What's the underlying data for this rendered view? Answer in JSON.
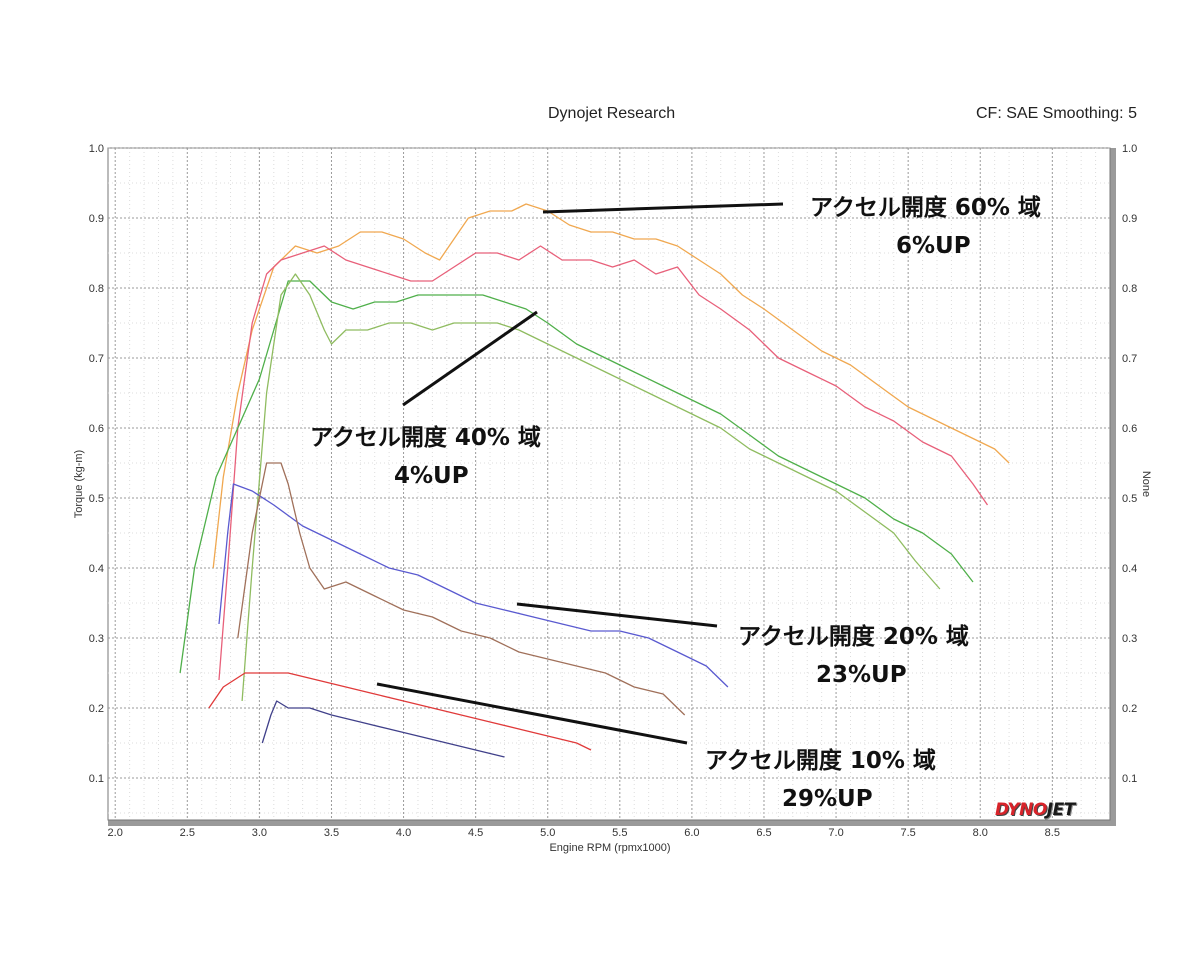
{
  "header": {
    "title": "Dynojet Research",
    "settings": "CF: SAE Smoothing: 5"
  },
  "logo": {
    "part1": "DYNO",
    "part2": "JET"
  },
  "annotations": [
    {
      "label": "アクセル開度 60% 域",
      "gain": "6%UP"
    },
    {
      "label": "アクセル開度 40% 域",
      "gain": "4%UP"
    },
    {
      "label": "アクセル開度 20% 域",
      "gain": "23%UP"
    },
    {
      "label": "アクセル開度 10% 域",
      "gain": "29%UP"
    }
  ],
  "chart_data": {
    "type": "line",
    "xlabel": "Engine RPM (rpmx1000)",
    "ylabel": "Torque (kg-m)",
    "y2label": "None",
    "xlim": [
      1.95,
      8.9
    ],
    "ylim": [
      0.04,
      1.0
    ],
    "xticks": [
      "2.0",
      "2.5",
      "3.0",
      "3.5",
      "4.0",
      "4.5",
      "5.0",
      "5.5",
      "6.0",
      "6.5",
      "7.0",
      "7.5",
      "8.0",
      "8.5"
    ],
    "yticks": [
      "0.1",
      "0.2",
      "0.3",
      "0.4",
      "0.5",
      "0.6",
      "0.7",
      "0.8",
      "0.9",
      "1.0"
    ],
    "grid": true,
    "series": [
      {
        "color": "#f0a850",
        "points": [
          [
            2.68,
            0.4
          ],
          [
            2.75,
            0.53
          ],
          [
            2.85,
            0.65
          ],
          [
            2.95,
            0.74
          ],
          [
            3.1,
            0.83
          ],
          [
            3.25,
            0.86
          ],
          [
            3.4,
            0.85
          ],
          [
            3.55,
            0.86
          ],
          [
            3.7,
            0.88
          ],
          [
            3.85,
            0.88
          ],
          [
            4.0,
            0.87
          ],
          [
            4.15,
            0.85
          ],
          [
            4.25,
            0.84
          ],
          [
            4.35,
            0.87
          ],
          [
            4.45,
            0.9
          ],
          [
            4.6,
            0.91
          ],
          [
            4.75,
            0.91
          ],
          [
            4.85,
            0.92
          ],
          [
            5.0,
            0.91
          ],
          [
            5.15,
            0.89
          ],
          [
            5.3,
            0.88
          ],
          [
            5.45,
            0.88
          ],
          [
            5.6,
            0.87
          ],
          [
            5.75,
            0.87
          ],
          [
            5.9,
            0.86
          ],
          [
            6.05,
            0.84
          ],
          [
            6.2,
            0.82
          ],
          [
            6.35,
            0.79
          ],
          [
            6.5,
            0.77
          ],
          [
            6.7,
            0.74
          ],
          [
            6.9,
            0.71
          ],
          [
            7.1,
            0.69
          ],
          [
            7.3,
            0.66
          ],
          [
            7.5,
            0.63
          ],
          [
            7.7,
            0.61
          ],
          [
            7.9,
            0.59
          ],
          [
            8.1,
            0.57
          ],
          [
            8.2,
            0.55
          ]
        ]
      },
      {
        "color": "#e8607a",
        "points": [
          [
            2.72,
            0.24
          ],
          [
            2.78,
            0.4
          ],
          [
            2.85,
            0.6
          ],
          [
            2.95,
            0.75
          ],
          [
            3.05,
            0.82
          ],
          [
            3.15,
            0.84
          ],
          [
            3.3,
            0.85
          ],
          [
            3.45,
            0.86
          ],
          [
            3.6,
            0.84
          ],
          [
            3.75,
            0.83
          ],
          [
            3.9,
            0.82
          ],
          [
            4.05,
            0.81
          ],
          [
            4.2,
            0.81
          ],
          [
            4.35,
            0.83
          ],
          [
            4.5,
            0.85
          ],
          [
            4.65,
            0.85
          ],
          [
            4.8,
            0.84
          ],
          [
            4.95,
            0.86
          ],
          [
            5.1,
            0.84
          ],
          [
            5.3,
            0.84
          ],
          [
            5.45,
            0.83
          ],
          [
            5.6,
            0.84
          ],
          [
            5.75,
            0.82
          ],
          [
            5.9,
            0.83
          ],
          [
            6.05,
            0.79
          ],
          [
            6.2,
            0.77
          ],
          [
            6.4,
            0.74
          ],
          [
            6.6,
            0.7
          ],
          [
            6.8,
            0.68
          ],
          [
            7.0,
            0.66
          ],
          [
            7.2,
            0.63
          ],
          [
            7.4,
            0.61
          ],
          [
            7.6,
            0.58
          ],
          [
            7.8,
            0.56
          ],
          [
            7.95,
            0.52
          ],
          [
            8.05,
            0.49
          ]
        ]
      },
      {
        "color": "#4faf4a",
        "points": [
          [
            2.45,
            0.25
          ],
          [
            2.55,
            0.4
          ],
          [
            2.7,
            0.53
          ],
          [
            2.85,
            0.6
          ],
          [
            3.0,
            0.67
          ],
          [
            3.1,
            0.74
          ],
          [
            3.2,
            0.81
          ],
          [
            3.35,
            0.81
          ],
          [
            3.5,
            0.78
          ],
          [
            3.65,
            0.77
          ],
          [
            3.8,
            0.78
          ],
          [
            3.95,
            0.78
          ],
          [
            4.1,
            0.79
          ],
          [
            4.25,
            0.79
          ],
          [
            4.4,
            0.79
          ],
          [
            4.55,
            0.79
          ],
          [
            4.7,
            0.78
          ],
          [
            4.85,
            0.77
          ],
          [
            5.0,
            0.75
          ],
          [
            5.2,
            0.72
          ],
          [
            5.4,
            0.7
          ],
          [
            5.6,
            0.68
          ],
          [
            5.8,
            0.66
          ],
          [
            6.0,
            0.64
          ],
          [
            6.2,
            0.62
          ],
          [
            6.4,
            0.59
          ],
          [
            6.6,
            0.56
          ],
          [
            6.8,
            0.54
          ],
          [
            7.0,
            0.52
          ],
          [
            7.2,
            0.5
          ],
          [
            7.4,
            0.47
          ],
          [
            7.6,
            0.45
          ],
          [
            7.8,
            0.42
          ],
          [
            7.95,
            0.38
          ]
        ]
      },
      {
        "color": "#8fbc60",
        "points": [
          [
            2.88,
            0.21
          ],
          [
            2.95,
            0.4
          ],
          [
            3.05,
            0.65
          ],
          [
            3.15,
            0.79
          ],
          [
            3.25,
            0.82
          ],
          [
            3.35,
            0.79
          ],
          [
            3.45,
            0.74
          ],
          [
            3.5,
            0.72
          ],
          [
            3.6,
            0.74
          ],
          [
            3.75,
            0.74
          ],
          [
            3.9,
            0.75
          ],
          [
            4.05,
            0.75
          ],
          [
            4.2,
            0.74
          ],
          [
            4.35,
            0.75
          ],
          [
            4.5,
            0.75
          ],
          [
            4.65,
            0.75
          ],
          [
            4.8,
            0.74
          ],
          [
            5.0,
            0.72
          ],
          [
            5.2,
            0.7
          ],
          [
            5.4,
            0.68
          ],
          [
            5.6,
            0.66
          ],
          [
            5.8,
            0.64
          ],
          [
            6.0,
            0.62
          ],
          [
            6.2,
            0.6
          ],
          [
            6.4,
            0.57
          ],
          [
            6.6,
            0.55
          ],
          [
            6.8,
            0.53
          ],
          [
            7.0,
            0.51
          ],
          [
            7.2,
            0.48
          ],
          [
            7.4,
            0.45
          ],
          [
            7.55,
            0.41
          ],
          [
            7.72,
            0.37
          ]
        ]
      },
      {
        "color": "#5a5ad0",
        "points": [
          [
            2.72,
            0.32
          ],
          [
            2.78,
            0.45
          ],
          [
            2.82,
            0.52
          ],
          [
            2.95,
            0.51
          ],
          [
            3.1,
            0.49
          ],
          [
            3.3,
            0.46
          ],
          [
            3.5,
            0.44
          ],
          [
            3.7,
            0.42
          ],
          [
            3.9,
            0.4
          ],
          [
            4.1,
            0.39
          ],
          [
            4.3,
            0.37
          ],
          [
            4.5,
            0.35
          ],
          [
            4.7,
            0.34
          ],
          [
            4.9,
            0.33
          ],
          [
            5.1,
            0.32
          ],
          [
            5.3,
            0.31
          ],
          [
            5.5,
            0.31
          ],
          [
            5.7,
            0.3
          ],
          [
            5.9,
            0.28
          ],
          [
            6.1,
            0.26
          ],
          [
            6.25,
            0.23
          ]
        ]
      },
      {
        "color": "#a0705a",
        "points": [
          [
            2.85,
            0.3
          ],
          [
            2.95,
            0.45
          ],
          [
            3.05,
            0.55
          ],
          [
            3.15,
            0.55
          ],
          [
            3.2,
            0.52
          ],
          [
            3.28,
            0.45
          ],
          [
            3.35,
            0.4
          ],
          [
            3.45,
            0.37
          ],
          [
            3.6,
            0.38
          ],
          [
            3.8,
            0.36
          ],
          [
            4.0,
            0.34
          ],
          [
            4.2,
            0.33
          ],
          [
            4.4,
            0.31
          ],
          [
            4.6,
            0.3
          ],
          [
            4.8,
            0.28
          ],
          [
            5.0,
            0.27
          ],
          [
            5.2,
            0.26
          ],
          [
            5.4,
            0.25
          ],
          [
            5.6,
            0.23
          ],
          [
            5.8,
            0.22
          ],
          [
            5.95,
            0.19
          ]
        ]
      },
      {
        "color": "#e03a3a",
        "points": [
          [
            2.65,
            0.2
          ],
          [
            2.75,
            0.23
          ],
          [
            2.9,
            0.25
          ],
          [
            3.0,
            0.25
          ],
          [
            3.2,
            0.25
          ],
          [
            3.4,
            0.24
          ],
          [
            3.6,
            0.23
          ],
          [
            3.8,
            0.22
          ],
          [
            4.0,
            0.21
          ],
          [
            4.2,
            0.2
          ],
          [
            4.4,
            0.19
          ],
          [
            4.6,
            0.18
          ],
          [
            4.8,
            0.17
          ],
          [
            5.0,
            0.16
          ],
          [
            5.2,
            0.15
          ],
          [
            5.3,
            0.14
          ]
        ]
      },
      {
        "color": "#40408a",
        "points": [
          [
            3.02,
            0.15
          ],
          [
            3.08,
            0.19
          ],
          [
            3.12,
            0.21
          ],
          [
            3.2,
            0.2
          ],
          [
            3.35,
            0.2
          ],
          [
            3.5,
            0.19
          ],
          [
            3.7,
            0.18
          ],
          [
            3.9,
            0.17
          ],
          [
            4.1,
            0.16
          ],
          [
            4.3,
            0.15
          ],
          [
            4.5,
            0.14
          ],
          [
            4.7,
            0.13
          ]
        ]
      }
    ]
  }
}
